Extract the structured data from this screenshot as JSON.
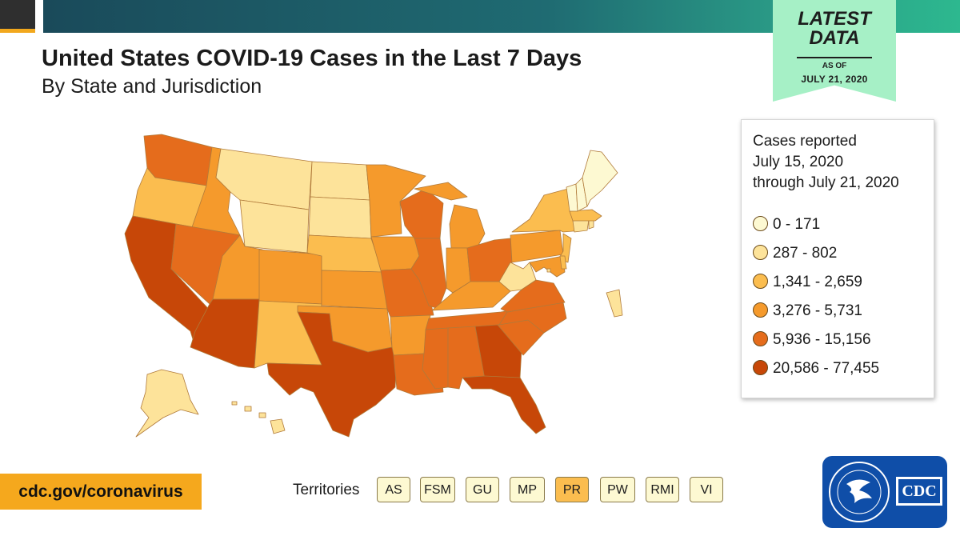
{
  "header": {
    "title": "United States COVID-19 Cases in the Last 7 Days",
    "subtitle": "By State and Jurisdiction"
  },
  "badge": {
    "line1": "LATEST",
    "line2": "DATA",
    "as_of": "AS OF",
    "date": "JULY 21, 2020"
  },
  "legend": {
    "title_lines": [
      "Cases reported",
      "July 15, 2020",
      "through July 21, 2020"
    ],
    "bins": [
      {
        "label": "0 - 171",
        "color": "#fdf9d2"
      },
      {
        "label": "287 - 802",
        "color": "#fde39a"
      },
      {
        "label": "1,341 - 2,659",
        "color": "#fbbd4f"
      },
      {
        "label": "3,276 - 5,731",
        "color": "#f59a2c"
      },
      {
        "label": "5,936 - 15,156",
        "color": "#e56c1c"
      },
      {
        "label": "20,586 - 77,455",
        "color": "#c74708"
      }
    ]
  },
  "map": {
    "states": [
      {
        "abbr": "WA",
        "bin": 4
      },
      {
        "abbr": "OR",
        "bin": 2
      },
      {
        "abbr": "CA",
        "bin": 5
      },
      {
        "abbr": "ID",
        "bin": 3
      },
      {
        "abbr": "NV",
        "bin": 4
      },
      {
        "abbr": "MT",
        "bin": 1
      },
      {
        "abbr": "WY",
        "bin": 1
      },
      {
        "abbr": "UT",
        "bin": 3
      },
      {
        "abbr": "AZ",
        "bin": 5
      },
      {
        "abbr": "CO",
        "bin": 3
      },
      {
        "abbr": "NM",
        "bin": 2
      },
      {
        "abbr": "ND",
        "bin": 1
      },
      {
        "abbr": "SD",
        "bin": 1
      },
      {
        "abbr": "NE",
        "bin": 2
      },
      {
        "abbr": "KS",
        "bin": 3
      },
      {
        "abbr": "OK",
        "bin": 3
      },
      {
        "abbr": "TX",
        "bin": 5
      },
      {
        "abbr": "MN",
        "bin": 3
      },
      {
        "abbr": "IA",
        "bin": 3
      },
      {
        "abbr": "MO",
        "bin": 4
      },
      {
        "abbr": "AR",
        "bin": 3
      },
      {
        "abbr": "LA",
        "bin": 4
      },
      {
        "abbr": "WI",
        "bin": 4
      },
      {
        "abbr": "IL",
        "bin": 4
      },
      {
        "abbr": "MI",
        "bin": 3
      },
      {
        "abbr": "IN",
        "bin": 3
      },
      {
        "abbr": "OH",
        "bin": 4
      },
      {
        "abbr": "KY",
        "bin": 3
      },
      {
        "abbr": "TN",
        "bin": 4
      },
      {
        "abbr": "MS",
        "bin": 4
      },
      {
        "abbr": "AL",
        "bin": 4
      },
      {
        "abbr": "GA",
        "bin": 5
      },
      {
        "abbr": "FL",
        "bin": 5
      },
      {
        "abbr": "SC",
        "bin": 4
      },
      {
        "abbr": "NC",
        "bin": 4
      },
      {
        "abbr": "VA",
        "bin": 4
      },
      {
        "abbr": "WV",
        "bin": 1
      },
      {
        "abbr": "PA",
        "bin": 3
      },
      {
        "abbr": "NY",
        "bin": 2
      },
      {
        "abbr": "NJ",
        "bin": 2
      },
      {
        "abbr": "MD",
        "bin": 3
      },
      {
        "abbr": "DE",
        "bin": 2
      },
      {
        "abbr": "CT",
        "bin": 1
      },
      {
        "abbr": "RI",
        "bin": 1
      },
      {
        "abbr": "MA",
        "bin": 2
      },
      {
        "abbr": "VT",
        "bin": 0
      },
      {
        "abbr": "NH",
        "bin": 0
      },
      {
        "abbr": "ME",
        "bin": 0
      },
      {
        "abbr": "AK",
        "bin": 1
      },
      {
        "abbr": "HI",
        "bin": 1
      },
      {
        "abbr": "DC",
        "bin": 1
      }
    ]
  },
  "territories": {
    "label": "Territories",
    "items": [
      {
        "label": "AS",
        "bin": 0
      },
      {
        "label": "FSM",
        "bin": 0
      },
      {
        "label": "GU",
        "bin": 0
      },
      {
        "label": "MP",
        "bin": 0
      },
      {
        "label": "PR",
        "bin": 2
      },
      {
        "label": "PW",
        "bin": 0
      },
      {
        "label": "RMI",
        "bin": 0
      },
      {
        "label": "VI",
        "bin": 0
      }
    ]
  },
  "footer": {
    "site": "cdc.gov/coronavirus",
    "logo_text": "CDC"
  }
}
